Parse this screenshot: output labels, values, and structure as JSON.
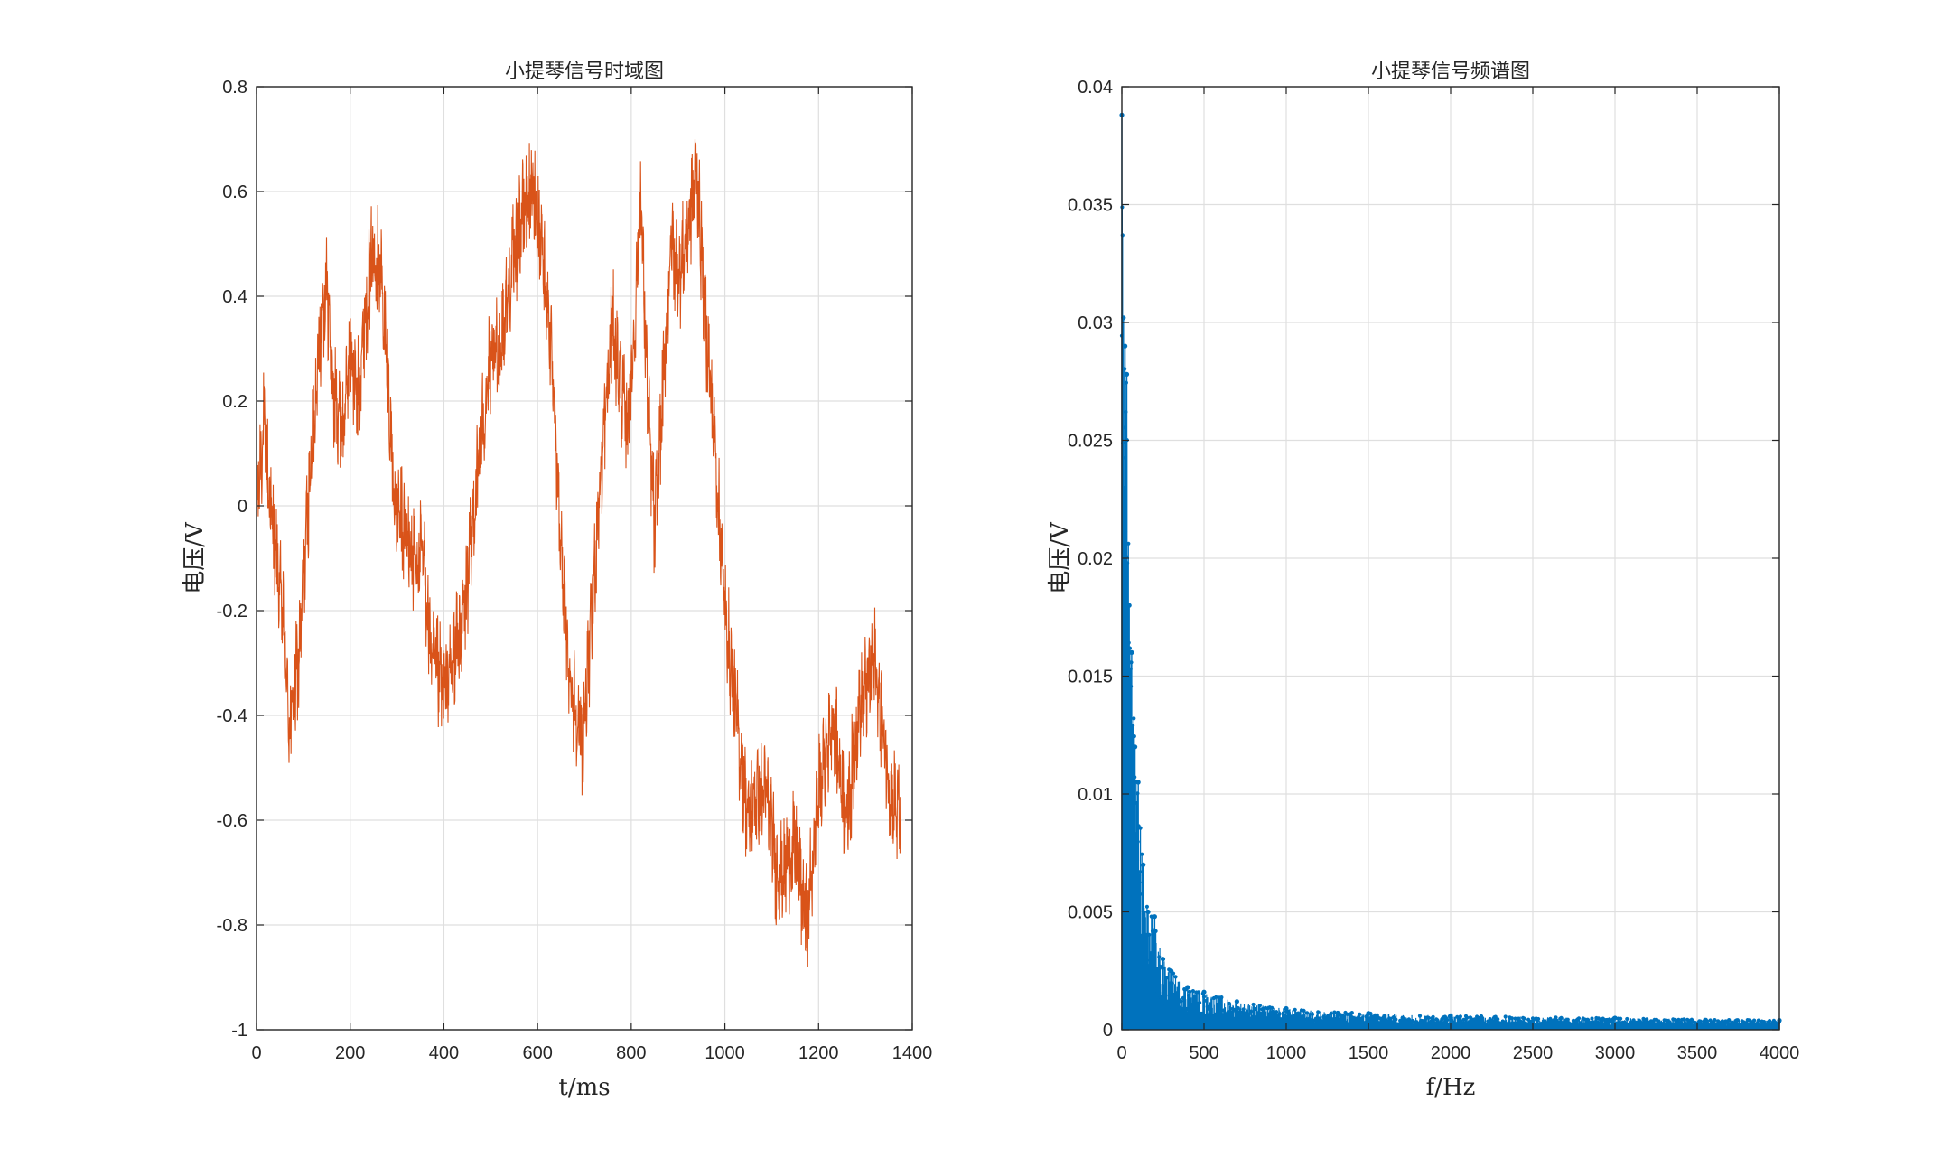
{
  "chart_data": [
    {
      "type": "line",
      "title": "小提琴信号时域图",
      "xlabel": "t/ms",
      "ylabel": "电压/V",
      "xlim": [
        0,
        1400
      ],
      "ylim": [
        -1,
        0.8
      ],
      "xticks": [
        0,
        200,
        400,
        600,
        800,
        1000,
        1200,
        1400
      ],
      "yticks": [
        -1,
        -0.8,
        -0.6,
        -0.4,
        -0.2,
        0,
        0.2,
        0.4,
        0.6,
        0.8
      ],
      "grid": true,
      "series_color": "#d95319",
      "envelope": {
        "x": [
          0,
          15,
          35,
          55,
          70,
          90,
          110,
          125,
          140,
          150,
          165,
          185,
          200,
          215,
          230,
          250,
          265,
          280,
          295,
          315,
          335,
          355,
          375,
          400,
          420,
          445,
          470,
          495,
          520,
          545,
          565,
          590,
          610,
          625,
          645,
          665,
          680,
          695,
          710,
          730,
          760,
          790,
          805,
          820,
          835,
          850,
          870,
          885,
          905,
          925,
          940,
          955,
          980,
          1000,
          1030,
          1050,
          1065,
          1090,
          1110,
          1125,
          1150,
          1175,
          1200,
          1230,
          1260,
          1285,
          1300,
          1320,
          1340,
          1355,
          1375
        ],
        "y": [
          0.0,
          0.15,
          -0.05,
          -0.2,
          -0.42,
          -0.3,
          0.0,
          0.2,
          0.38,
          0.42,
          0.2,
          0.15,
          0.3,
          0.2,
          0.35,
          0.5,
          0.45,
          0.25,
          0.0,
          -0.05,
          -0.1,
          -0.1,
          -0.3,
          -0.35,
          -0.3,
          -0.2,
          0.05,
          0.25,
          0.3,
          0.45,
          0.55,
          0.6,
          0.5,
          0.35,
          0.0,
          -0.3,
          -0.38,
          -0.45,
          -0.3,
          0.0,
          0.35,
          0.15,
          0.3,
          0.6,
          0.2,
          -0.05,
          0.25,
          0.5,
          0.45,
          0.55,
          0.65,
          0.4,
          0.1,
          -0.2,
          -0.45,
          -0.6,
          -0.55,
          -0.55,
          -0.7,
          -0.7,
          -0.65,
          -0.8,
          -0.55,
          -0.4,
          -0.6,
          -0.4,
          -0.35,
          -0.3,
          -0.45,
          -0.55,
          -0.6
        ]
      }
    },
    {
      "type": "stem",
      "title": "小提琴信号频谱图",
      "xlabel": "f/Hz",
      "ylabel": "电压/V",
      "xlim": [
        0,
        4000
      ],
      "ylim": [
        0,
        0.04
      ],
      "xticks": [
        0,
        500,
        1000,
        1500,
        2000,
        2500,
        3000,
        3500,
        4000
      ],
      "yticks": [
        0,
        0.005,
        0.01,
        0.015,
        0.02,
        0.025,
        0.03,
        0.035,
        0.04
      ],
      "ytick_labels": [
        "0",
        "0.005",
        "0.01",
        "0.015",
        "0.02",
        "0.025",
        "0.03",
        "0.035",
        "0.04"
      ],
      "grid": true,
      "series_color": "#0072bd",
      "peaks": {
        "f": [
          0,
          10,
          20,
          30,
          45,
          60,
          80,
          100,
          130,
          160,
          200,
          250,
          300,
          400,
          500,
          700,
          1000,
          1500,
          2000,
          3000,
          4000
        ],
        "amplitude": [
          0.0388,
          0.0302,
          0.029,
          0.0278,
          0.018,
          0.016,
          0.012,
          0.0105,
          0.007,
          0.005,
          0.0048,
          0.003,
          0.0025,
          0.0018,
          0.0016,
          0.0012,
          0.0009,
          0.0007,
          0.0006,
          0.0005,
          0.0004
        ]
      }
    }
  ]
}
